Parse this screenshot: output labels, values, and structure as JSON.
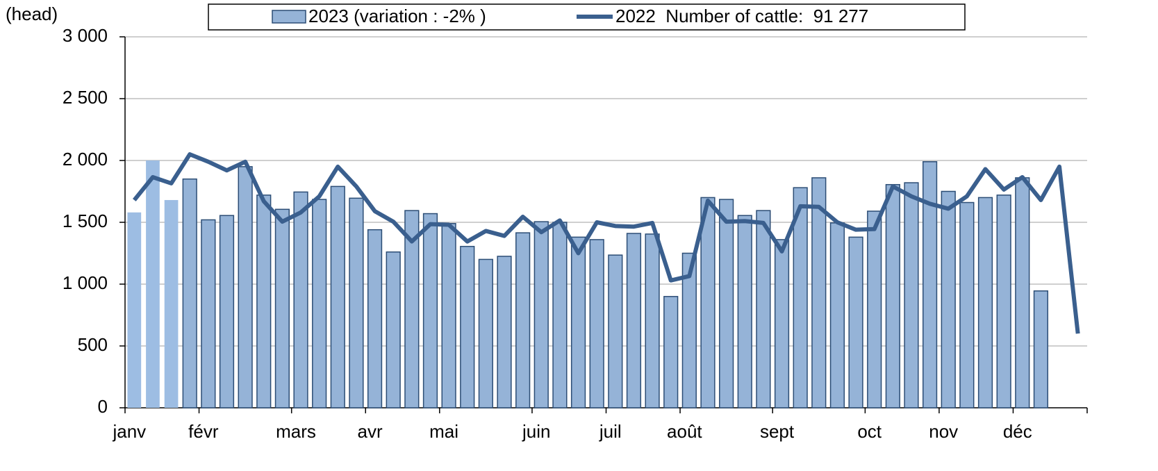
{
  "chart_data": {
    "type": "bar_line",
    "y_axis_label": "(head)",
    "categories": [
      "janv",
      null,
      null,
      null,
      "févr",
      null,
      null,
      null,
      null,
      "mars",
      null,
      null,
      null,
      "avr",
      null,
      null,
      null,
      "mai",
      null,
      null,
      null,
      null,
      "juin",
      null,
      null,
      null,
      "juil",
      null,
      null,
      null,
      "août",
      null,
      null,
      null,
      null,
      "sept",
      null,
      null,
      null,
      null,
      "oct",
      null,
      null,
      null,
      "nov",
      null,
      null,
      null,
      "déc",
      null,
      null,
      null
    ],
    "series": [
      {
        "name": "2023 (variation : -2% )",
        "type": "bar",
        "color": "#95b3d7",
        "colors": [
          "#9dbde3",
          "#9dbde3",
          "#9dbde3",
          "#95b3d7",
          "#95b3d7",
          "#95b3d7",
          "#95b3d7",
          "#95b3d7",
          "#95b3d7",
          "#95b3d7",
          "#95b3d7",
          "#95b3d7",
          "#95b3d7",
          "#95b3d7",
          "#95b3d7",
          "#95b3d7",
          "#95b3d7",
          "#95b3d7",
          "#95b3d7",
          "#95b3d7",
          "#95b3d7",
          "#95b3d7",
          "#95b3d7",
          "#95b3d7",
          "#95b3d7",
          "#95b3d7",
          "#95b3d7",
          "#95b3d7",
          "#95b3d7",
          "#95b3d7",
          "#95b3d7",
          "#95b3d7",
          "#95b3d7",
          "#95b3d7",
          "#95b3d7",
          "#95b3d7",
          "#95b3d7",
          "#95b3d7",
          "#95b3d7",
          "#95b3d7",
          "#95b3d7",
          "#95b3d7",
          "#95b3d7",
          "#95b3d7",
          "#95b3d7",
          "#95b3d7",
          "#95b3d7",
          "#95b3d7",
          "#95b3d7",
          "#95b3d7",
          "#95b3d7",
          "#95b3d7"
        ],
        "edgecolors": [
          "none",
          "none",
          "none",
          "#2c4d75",
          "#2c4d75",
          "#2c4d75",
          "#2c4d75",
          "#2c4d75",
          "#2c4d75",
          "#2c4d75",
          "#2c4d75",
          "#2c4d75",
          "#2c4d75",
          "#2c4d75",
          "#2c4d75",
          "#2c4d75",
          "#2c4d75",
          "#2c4d75",
          "#2c4d75",
          "#2c4d75",
          "#2c4d75",
          "#2c4d75",
          "#2c4d75",
          "#2c4d75",
          "#2c4d75",
          "#2c4d75",
          "#2c4d75",
          "#2c4d75",
          "#2c4d75",
          "#2c4d75",
          "#2c4d75",
          "#2c4d75",
          "#2c4d75",
          "#2c4d75",
          "#2c4d75",
          "#2c4d75",
          "#2c4d75",
          "#2c4d75",
          "#2c4d75",
          "#2c4d75",
          "#2c4d75",
          "#2c4d75",
          "#2c4d75",
          "#2c4d75",
          "#2c4d75",
          "#2c4d75",
          "#2c4d75",
          "#2c4d75",
          "#2c4d75",
          "#2c4d75",
          "#2c4d75",
          "#2c4d75"
        ],
        "values": [
          1580,
          2000,
          1680,
          1850,
          1520,
          1555,
          1950,
          1720,
          1605,
          1745,
          1685,
          1790,
          1695,
          1440,
          1260,
          1595,
          1570,
          1490,
          1305,
          1200,
          1225,
          1415,
          1505,
          1500,
          1380,
          1360,
          1235,
          1410,
          1405,
          900,
          1250,
          1700,
          1685,
          1555,
          1595,
          1360,
          1780,
          1860,
          1495,
          1380,
          1590,
          1805,
          1820,
          1990,
          1750,
          1660,
          1700,
          1720,
          1860,
          945,
          null,
          null
        ]
      },
      {
        "name": "2022  Number of cattle:  91 277",
        "type": "line",
        "color": "#3a5f8e",
        "values": [
          1680,
          1865,
          1815,
          2050,
          1990,
          1920,
          1990,
          1670,
          1505,
          1580,
          1710,
          1950,
          1790,
          1590,
          1505,
          1345,
          1485,
          1480,
          1345,
          1430,
          1390,
          1545,
          1420,
          1515,
          1250,
          1500,
          1470,
          1465,
          1495,
          1030,
          1065,
          1675,
          1505,
          1510,
          1495,
          1265,
          1630,
          1625,
          1500,
          1440,
          1445,
          1790,
          1710,
          1650,
          1610,
          1710,
          1930,
          1765,
          1865,
          1680,
          1950,
          600
        ]
      }
    ],
    "ylim": [
      0,
      3000
    ],
    "yticks": [
      0,
      500,
      {
        "value": 1000,
        "label": "1 000"
      },
      {
        "value": 1500,
        "label": "1 500"
      },
      {
        "value": 2000,
        "label": "2 000"
      },
      {
        "value": 2500,
        "label": "2 500"
      },
      {
        "value": 3000,
        "label": "3 000"
      }
    ],
    "grid": true,
    "legend": "top"
  }
}
